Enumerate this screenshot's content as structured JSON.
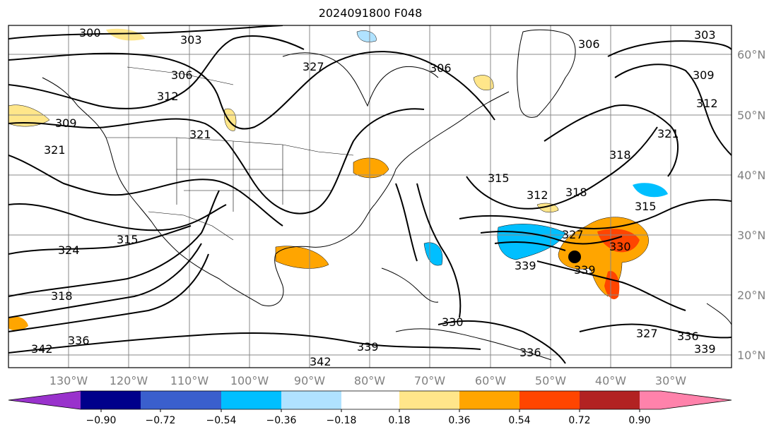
{
  "title": "2024091800 F048",
  "longitude_labels": [
    "130°W",
    "120°W",
    "110°W",
    "100°W",
    "90°W",
    "80°W",
    "70°W",
    "60°W",
    "50°W",
    "40°W",
    "30°W"
  ],
  "latitude_labels": [
    "60°N",
    "50°N",
    "40°N",
    "30°N",
    "20°N",
    "10°N"
  ],
  "contour_labels": [
    "300",
    "303",
    "306",
    "309",
    "312",
    "315",
    "318",
    "321",
    "324",
    "327",
    "330",
    "336",
    "339",
    "342"
  ],
  "colorbar": {
    "ticks": [
      "−0.90",
      "−0.72",
      "−0.54",
      "−0.36",
      "−0.18",
      "0.18",
      "0.36",
      "0.54",
      "0.72",
      "0.90"
    ],
    "colors": [
      "#9932cc",
      "#00008b",
      "#3a5fcd",
      "#00bfff",
      "#b0e2ff",
      "#ffffff",
      "#ffe68a",
      "#ffa500",
      "#ff4500",
      "#b22222",
      "#ff82ab"
    ]
  },
  "storm_marker": {
    "lon": -46,
    "lat": 27
  }
}
